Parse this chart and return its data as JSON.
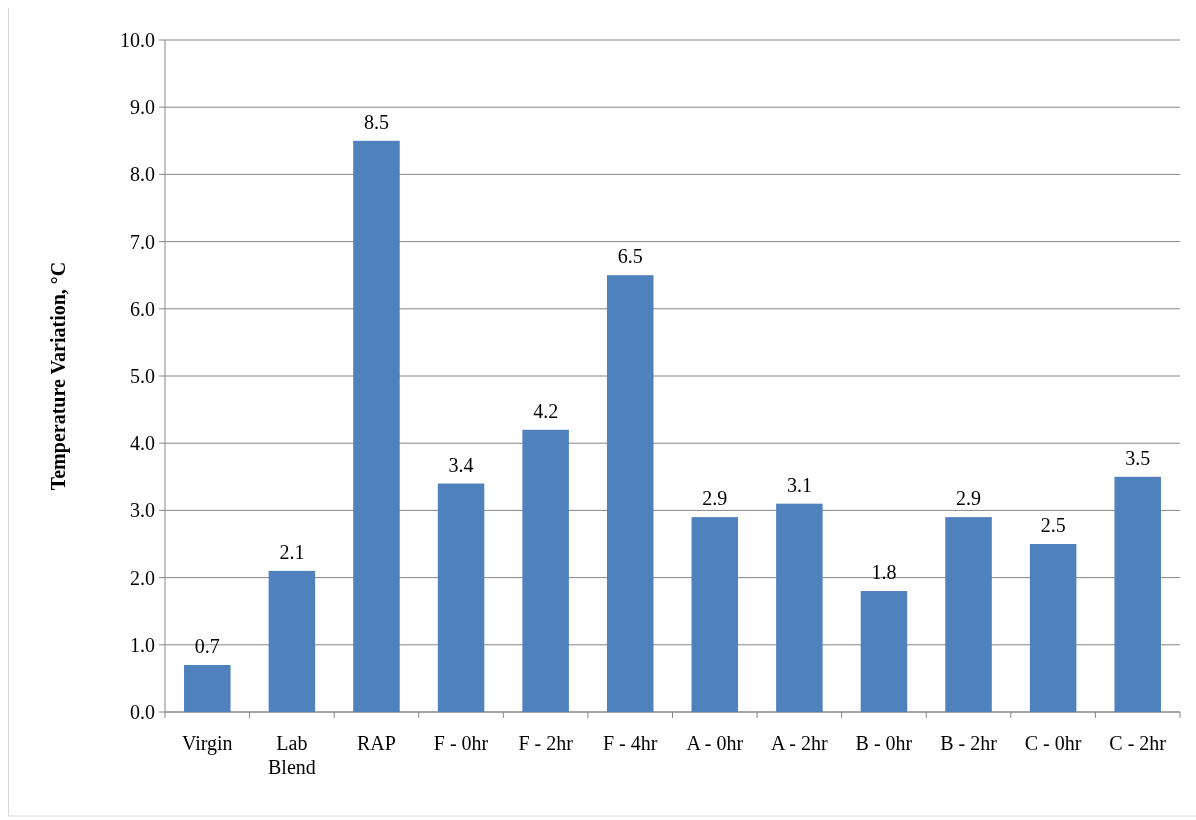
{
  "chart_data": {
    "type": "bar",
    "ylabel": "Temperature Variation, °C",
    "categories": [
      "Virgin",
      "Lab Blend",
      "RAP",
      "F - 0hr",
      "F - 2hr",
      "F - 4hr",
      "A - 0hr",
      "A - 2hr",
      "B - 0hr",
      "B - 2hr",
      "C - 0hr",
      "C - 2hr"
    ],
    "values": [
      0.7,
      2.1,
      8.5,
      3.4,
      4.2,
      6.5,
      2.9,
      3.1,
      1.8,
      2.9,
      2.5,
      3.5
    ],
    "color": "#4f81bd",
    "ylim": [
      0,
      10
    ],
    "yticks": [
      {
        "value": 0,
        "label": "0.0"
      },
      {
        "value": 1,
        "label": "1.0"
      },
      {
        "value": 2,
        "label": "2.0"
      },
      {
        "value": 3,
        "label": "3.0"
      },
      {
        "value": 4,
        "label": "4.0"
      },
      {
        "value": 5,
        "label": "5.0"
      },
      {
        "value": 6,
        "label": "6.0"
      },
      {
        "value": 7,
        "label": "7.0"
      },
      {
        "value": 8,
        "label": "8.0"
      },
      {
        "value": 9,
        "label": "9.0"
      },
      {
        "value": 10,
        "label": "10.0"
      }
    ],
    "grid": "y",
    "data_labels": true
  }
}
